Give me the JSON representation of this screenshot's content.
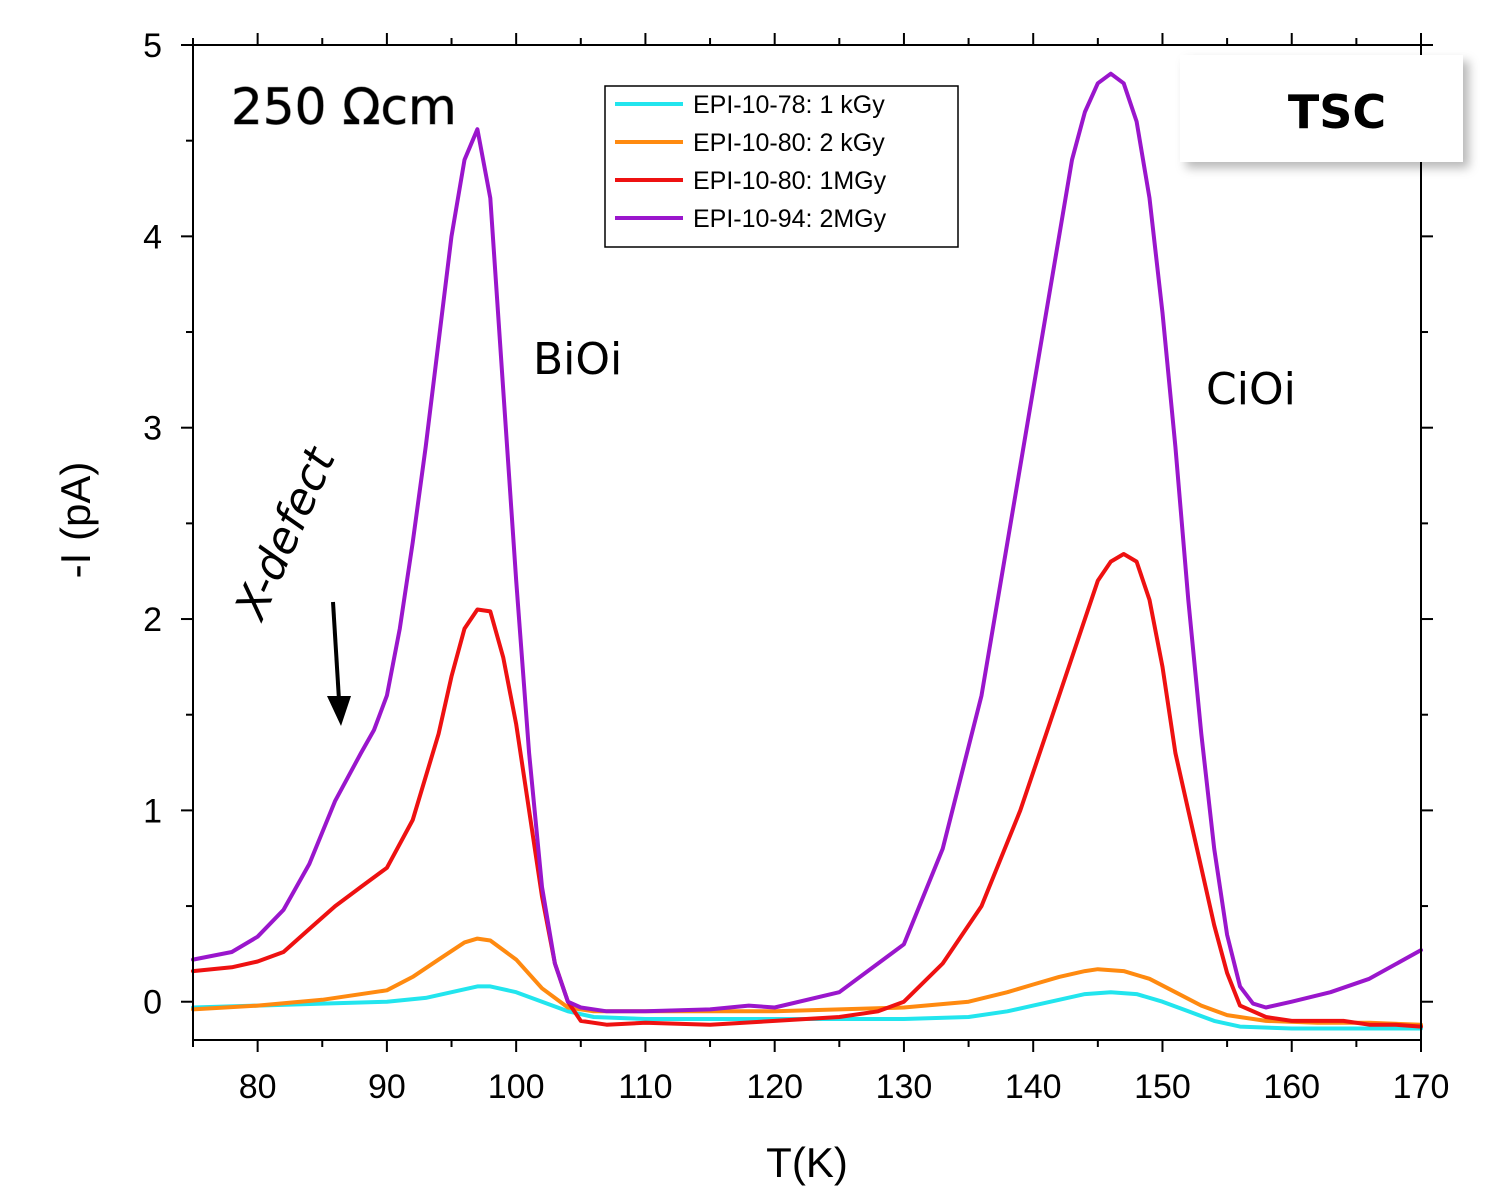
{
  "chart_data": {
    "type": "line",
    "xlabel": "T(K)",
    "ylabel": "-I (pA)",
    "xlim": [
      75,
      170
    ],
    "ylim": [
      -0.2,
      5
    ],
    "xticks": [
      80,
      90,
      100,
      110,
      120,
      130,
      140,
      150,
      160,
      170
    ],
    "yticks": [
      0,
      1,
      2,
      3,
      4,
      5
    ],
    "grid": false,
    "legend_position": "top-center",
    "series": [
      {
        "name": "EPI-10-78: 1 kGy",
        "color": "#22e5ee",
        "x": [
          75,
          80,
          85,
          90,
          93,
          95,
          97,
          98,
          100,
          102,
          104,
          106,
          110,
          115,
          120,
          125,
          130,
          135,
          138,
          140,
          142,
          144,
          146,
          148,
          150,
          152,
          154,
          156,
          160,
          165,
          170
        ],
        "y": [
          -0.03,
          -0.02,
          -0.01,
          0.0,
          0.02,
          0.05,
          0.08,
          0.08,
          0.05,
          0.0,
          -0.05,
          -0.08,
          -0.09,
          -0.09,
          -0.09,
          -0.09,
          -0.09,
          -0.08,
          -0.05,
          -0.02,
          0.01,
          0.04,
          0.05,
          0.04,
          0.0,
          -0.05,
          -0.1,
          -0.13,
          -0.14,
          -0.14,
          -0.14
        ]
      },
      {
        "name": "EPI-10-80: 2 kGy",
        "color": "#ff8a10",
        "x": [
          75,
          80,
          85,
          90,
          92,
          94,
          96,
          97,
          98,
          100,
          102,
          104,
          106,
          110,
          115,
          120,
          125,
          130,
          135,
          138,
          140,
          142,
          144,
          145,
          147,
          149,
          151,
          153,
          155,
          158,
          162,
          166,
          170
        ],
        "y": [
          -0.04,
          -0.02,
          0.01,
          0.06,
          0.13,
          0.22,
          0.31,
          0.33,
          0.32,
          0.22,
          0.07,
          -0.03,
          -0.05,
          -0.05,
          -0.05,
          -0.05,
          -0.04,
          -0.03,
          0.0,
          0.05,
          0.09,
          0.13,
          0.16,
          0.17,
          0.16,
          0.12,
          0.05,
          -0.02,
          -0.07,
          -0.1,
          -0.11,
          -0.11,
          -0.12
        ]
      },
      {
        "name": "EPI-10-80: 1MGy",
        "color": "#ee1111",
        "x": [
          75,
          78,
          80,
          82,
          84,
          86,
          88,
          90,
          92,
          94,
          95,
          96,
          97,
          98,
          99,
          100,
          101,
          102,
          103,
          104,
          105,
          107,
          110,
          115,
          120,
          125,
          128,
          130,
          133,
          136,
          139,
          142,
          144,
          145,
          146,
          147,
          148,
          149,
          150,
          151,
          152,
          153,
          154,
          155,
          156,
          158,
          160,
          162,
          164,
          166,
          168,
          170
        ],
        "y": [
          0.16,
          0.18,
          0.21,
          0.26,
          0.38,
          0.5,
          0.6,
          0.7,
          0.95,
          1.4,
          1.7,
          1.95,
          2.05,
          2.04,
          1.8,
          1.45,
          1.0,
          0.55,
          0.2,
          0.0,
          -0.1,
          -0.12,
          -0.11,
          -0.12,
          -0.1,
          -0.08,
          -0.05,
          0.0,
          0.2,
          0.5,
          1.0,
          1.6,
          2.0,
          2.2,
          2.3,
          2.34,
          2.3,
          2.1,
          1.75,
          1.3,
          1.0,
          0.7,
          0.4,
          0.15,
          -0.02,
          -0.08,
          -0.1,
          -0.1,
          -0.1,
          -0.12,
          -0.12,
          -0.13
        ]
      },
      {
        "name": "EPI-10-94: 2MGy",
        "color": "#9a16cc",
        "x": [
          75,
          78,
          80,
          82,
          84,
          86,
          88,
          89,
          90,
          91,
          92,
          93,
          94,
          95,
          96,
          97,
          98,
          99,
          100,
          101,
          102,
          103,
          104,
          105,
          107,
          110,
          115,
          118,
          120,
          125,
          130,
          133,
          136,
          138,
          140,
          142,
          143,
          144,
          145,
          146,
          147,
          148,
          149,
          150,
          151,
          152,
          153,
          154,
          155,
          156,
          157,
          158,
          160,
          163,
          166,
          170
        ],
        "y": [
          0.22,
          0.26,
          0.34,
          0.48,
          0.72,
          1.05,
          1.3,
          1.42,
          1.6,
          1.95,
          2.4,
          2.9,
          3.45,
          4.0,
          4.4,
          4.56,
          4.2,
          3.2,
          2.2,
          1.3,
          0.6,
          0.2,
          0.0,
          -0.03,
          -0.05,
          -0.05,
          -0.04,
          -0.02,
          -0.03,
          0.05,
          0.3,
          0.8,
          1.6,
          2.4,
          3.2,
          4.0,
          4.4,
          4.65,
          4.8,
          4.85,
          4.8,
          4.6,
          4.2,
          3.6,
          2.9,
          2.1,
          1.4,
          0.8,
          0.35,
          0.08,
          -0.01,
          -0.03,
          0.0,
          0.05,
          0.12,
          0.27
        ]
      }
    ]
  },
  "annotations": {
    "resistivity": "250 Ωcm",
    "peak1": "BiOi",
    "peak2": "CiOi",
    "defect": "X-defect",
    "method": "TSC"
  }
}
